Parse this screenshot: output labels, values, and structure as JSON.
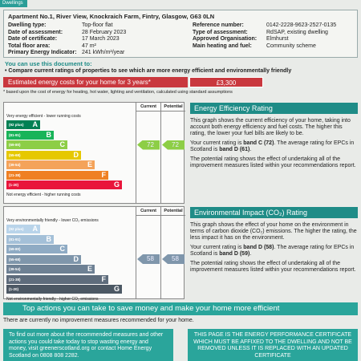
{
  "tab": "Dwellings",
  "header": {
    "address": "Apartment No.1, River View, Knockraich Farm, Fintry, Glasgow, G63 0LN",
    "fields_left": [
      {
        "label": "Dwelling type:",
        "value": "Top-floor flat"
      },
      {
        "label": "Date of assessment:",
        "value": "28 February 2023"
      },
      {
        "label": "Date of certificate:",
        "value": "17 March 2023"
      },
      {
        "label": "Total floor area:",
        "value": "47 m²"
      },
      {
        "label": "Primary Energy Indicator:",
        "value": "241 kWh/m²/year"
      }
    ],
    "fields_right": [
      {
        "label": "Reference number:",
        "value": "0142-2228-9623-2527-0135"
      },
      {
        "label": "Type of assessment:",
        "value": "RdSAP, existing dwelling"
      },
      {
        "label": "Approved Organisation:",
        "value": "Elmhurst"
      },
      {
        "label": "Main heating and fuel:",
        "value": "Community scheme"
      }
    ]
  },
  "use": {
    "title": "You can use this document to:",
    "bullet": "Compare current ratings of properties to see which are more energy efficient and environmentally friendly"
  },
  "costs": {
    "label": "Estimated energy costs for your home for 3 years*",
    "value": "£3,300",
    "note": "* based upon the cost of energy for heating, hot water, lighting and ventilation, calculated using standard assumptions"
  },
  "ratings": [
    {
      "top_label": "Very energy efficient - lower running costs",
      "columns": [
        "Current",
        "Potential"
      ],
      "bands": [
        {
          "range": "(92 plus)",
          "letter": "A"
        },
        {
          "range": "(81-91)",
          "letter": "B"
        },
        {
          "range": "(69-80)",
          "letter": "C"
        },
        {
          "range": "(55-68)",
          "letter": "D"
        },
        {
          "range": "(39-54)",
          "letter": "E"
        },
        {
          "range": "(21-38)",
          "letter": "F"
        },
        {
          "range": "(1-20)",
          "letter": "G"
        }
      ],
      "bottom_label": "Not energy efficient - higher running costs",
      "current": 72,
      "potential": 72,
      "heading": "Energy Efficiency Rating",
      "paragraphs": [
        [
          "This graph shows the current efficiency of your home, taking into account both energy efficiency and fuel costs. The higher this rating, the lower your fuel bills are likely to be."
        ],
        [
          "Your current rating is ",
          "band C (72)",
          ". The average rating for EPCs in Scotland is ",
          "band D (61)",
          "."
        ],
        [
          "The potential rating shows the effect of undertaking all of the improvement measures listed within your recommendations report."
        ]
      ]
    },
    {
      "top_label": "Very environmentally friendly - lower CO₂ emissions",
      "columns": [
        "Current",
        "Potential"
      ],
      "bands": [
        {
          "range": "(92 plus)",
          "letter": "A"
        },
        {
          "range": "(81-91)",
          "letter": "B"
        },
        {
          "range": "(69-80)",
          "letter": "C"
        },
        {
          "range": "(55-68)",
          "letter": "D"
        },
        {
          "range": "(39-54)",
          "letter": "E"
        },
        {
          "range": "(21-38)",
          "letter": "F"
        },
        {
          "range": "(1-20)",
          "letter": "G"
        }
      ],
      "bottom_label": "Not environmentally friendly - higher CO₂ emissions",
      "current": 58,
      "potential": 58,
      "heading": "Environmental Impact (CO₂) Rating",
      "paragraphs": [
        [
          "This graph shows the effect of your home on the environment in terms of carbon dioxide (CO₂) emissions. The higher the rating, the less impact it has on the environment."
        ],
        [
          "Your current rating is ",
          "band D (58)",
          ". The average rating for EPCs in Scotland is ",
          "band D (59)",
          "."
        ],
        [
          "The potential rating shows the effect of undertaking all of the improvement measures listed within your recommendations report."
        ]
      ]
    }
  ],
  "actions": {
    "title": "Top actions you can take to save money and make your home more efficient",
    "text": "There are currently no improvement measures recommended for your home."
  },
  "footer": {
    "left": "To find out more about the recommended measures and other actions you could take today to stop wasting energy and money, visit greenerscotland.org or contact Home Energy Scotland on 0808 808 2282.",
    "right": "THIS PAGE IS THE ENERGY PERFORMANCE CERTIFICATE WHICH MUST BE AFFIXED TO THE DWELLING AND NOT BE REMOVED UNLESS IT IS REPLACED WITH AN UPDATED CERTIFICATE"
  }
}
